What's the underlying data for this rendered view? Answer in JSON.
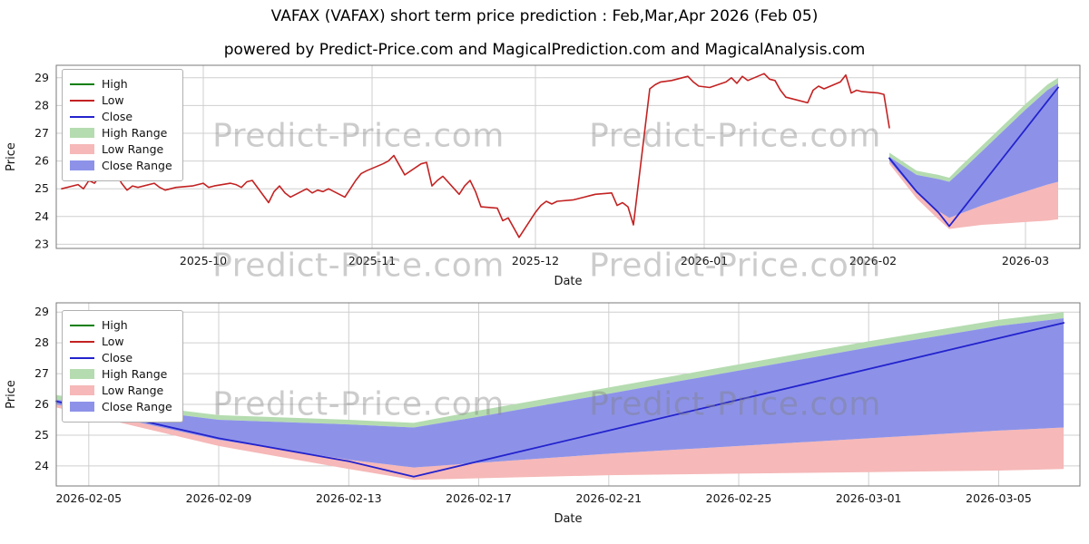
{
  "title": "VAFAX (VAFAX) short term price prediction : Feb,Mar,Apr 2026 (Feb 05)",
  "subtitle": "powered by Predict-Price.com and MagicalPrediction.com and MagicalAnalysis.com",
  "watermark": {
    "text": "Predict-Price.com"
  },
  "colors": {
    "high": "#0a7f0a",
    "low": "#c32222",
    "close": "#2323cd",
    "high_range": "#b5dcb0",
    "low_range": "#f6b8b8",
    "close_range": "#8d92e8"
  },
  "legend": {
    "items": [
      {
        "label": "High",
        "swatch": "line",
        "color_key": "high"
      },
      {
        "label": "Low",
        "swatch": "line",
        "color_key": "low"
      },
      {
        "label": "Close",
        "swatch": "line",
        "color_key": "close"
      },
      {
        "label": "High Range",
        "swatch": "patch",
        "color_key": "high_range"
      },
      {
        "label": "Low Range",
        "swatch": "patch",
        "color_key": "low_range"
      },
      {
        "label": "Close Range",
        "swatch": "patch",
        "color_key": "close_range"
      }
    ]
  },
  "chart_data": {
    "type": "line",
    "history": {
      "name": "Low",
      "dates": [
        "2025-09-05",
        "2025-09-08",
        "2025-09-09",
        "2025-09-10",
        "2025-09-11",
        "2025-09-12",
        "2025-09-15",
        "2025-09-16",
        "2025-09-17",
        "2025-09-18",
        "2025-09-19",
        "2025-09-22",
        "2025-09-23",
        "2025-09-24",
        "2025-09-25",
        "2025-09-26",
        "2025-09-29",
        "2025-09-30",
        "2025-10-01",
        "2025-10-02",
        "2025-10-03",
        "2025-10-06",
        "2025-10-07",
        "2025-10-08",
        "2025-10-09",
        "2025-10-10",
        "2025-10-13",
        "2025-10-14",
        "2025-10-15",
        "2025-10-16",
        "2025-10-17",
        "2025-10-20",
        "2025-10-21",
        "2025-10-22",
        "2025-10-23",
        "2025-10-24",
        "2025-10-27",
        "2025-10-28",
        "2025-10-29",
        "2025-10-30",
        "2025-10-31",
        "2025-11-03",
        "2025-11-04",
        "2025-11-05",
        "2025-11-06",
        "2025-11-07",
        "2025-11-10",
        "2025-11-11",
        "2025-11-12",
        "2025-11-13",
        "2025-11-14",
        "2025-11-17",
        "2025-11-18",
        "2025-11-19",
        "2025-11-20",
        "2025-11-21",
        "2025-11-24",
        "2025-11-25",
        "2025-11-26",
        "2025-11-28",
        "2025-12-01",
        "2025-12-02",
        "2025-12-03",
        "2025-12-04",
        "2025-12-05",
        "2025-12-08",
        "2025-12-09",
        "2025-12-10",
        "2025-12-11",
        "2025-12-12",
        "2025-12-15",
        "2025-12-16",
        "2025-12-17",
        "2025-12-18",
        "2025-12-19",
        "2025-12-22",
        "2025-12-23",
        "2025-12-24",
        "2025-12-26",
        "2025-12-29",
        "2025-12-30",
        "2025-12-31",
        "2026-01-02",
        "2026-01-05",
        "2026-01-06",
        "2026-01-07",
        "2026-01-08",
        "2026-01-09",
        "2026-01-12",
        "2026-01-13",
        "2026-01-14",
        "2026-01-15",
        "2026-01-16",
        "2026-01-20",
        "2026-01-21",
        "2026-01-22",
        "2026-01-23",
        "2026-01-26",
        "2026-01-27",
        "2026-01-28",
        "2026-01-29",
        "2026-01-30",
        "2026-02-02",
        "2026-02-03",
        "2026-02-04"
      ],
      "values": [
        25.0,
        25.15,
        25.0,
        25.3,
        25.2,
        25.45,
        25.55,
        25.2,
        24.95,
        25.1,
        25.05,
        25.2,
        25.05,
        24.95,
        25.0,
        25.05,
        25.1,
        25.15,
        25.2,
        25.05,
        25.1,
        25.2,
        25.15,
        25.05,
        25.25,
        25.3,
        24.5,
        24.9,
        25.1,
        24.85,
        24.7,
        25.0,
        24.85,
        24.95,
        24.9,
        25.0,
        24.7,
        25.0,
        25.3,
        25.55,
        25.65,
        25.9,
        26.0,
        26.2,
        25.85,
        25.5,
        25.9,
        25.95,
        25.1,
        25.3,
        25.45,
        24.8,
        25.1,
        25.3,
        24.9,
        24.35,
        24.3,
        23.85,
        23.95,
        23.25,
        24.15,
        24.4,
        24.55,
        24.45,
        24.55,
        24.6,
        24.65,
        24.7,
        24.75,
        24.8,
        24.85,
        24.4,
        24.5,
        24.35,
        23.7,
        28.6,
        28.75,
        28.85,
        28.9,
        29.05,
        28.85,
        28.7,
        28.65,
        28.85,
        29.0,
        28.8,
        29.05,
        28.9,
        29.15,
        28.95,
        28.9,
        28.55,
        28.3,
        28.1,
        28.55,
        28.7,
        28.6,
        28.85,
        29.1,
        28.45,
        28.55,
        28.5,
        28.45,
        28.4,
        27.2
      ]
    },
    "prediction": {
      "dates": [
        "2026-02-04",
        "2026-02-09",
        "2026-02-13",
        "2026-02-15",
        "2026-02-17",
        "2026-02-21",
        "2026-02-25",
        "2026-03-01",
        "2026-03-05",
        "2026-03-07"
      ],
      "close": [
        26.1,
        24.9,
        24.15,
        23.65,
        24.15,
        25.15,
        26.15,
        27.15,
        28.15,
        28.65
      ],
      "high_upper": [
        26.3,
        25.65,
        25.5,
        25.4,
        25.8,
        26.55,
        27.3,
        28.05,
        28.75,
        29.0
      ],
      "close_upper": [
        26.15,
        25.5,
        25.35,
        25.25,
        25.6,
        26.35,
        27.1,
        27.85,
        28.55,
        28.8
      ],
      "close_lower": [
        26.0,
        24.85,
        24.2,
        23.95,
        24.1,
        24.4,
        24.65,
        24.9,
        25.15,
        25.25
      ],
      "low_lower": [
        25.9,
        24.65,
        23.9,
        23.55,
        23.6,
        23.7,
        23.75,
        23.8,
        23.85,
        23.9
      ]
    },
    "bands": [
      {
        "name": "High Range",
        "upper": "high_upper",
        "lower": "close_upper",
        "color_key": "high_range"
      },
      {
        "name": "Low Range",
        "upper": "close_lower",
        "lower": "low_lower",
        "color_key": "low_range"
      },
      {
        "name": "Close Range",
        "upper": "close_upper",
        "lower": "close_lower",
        "color_key": "close_range"
      }
    ],
    "axes": [
      {
        "id": "top",
        "xlabel": "Date",
        "ylabel": "Price",
        "xlim": [
          "2025-09-04",
          "2026-03-11"
        ],
        "ylim": [
          22.85,
          29.45
        ],
        "yticks": [
          23,
          24,
          25,
          26,
          27,
          28,
          29
        ],
        "xticks": [
          {
            "pos": "2025-10-01",
            "label": "2025-10"
          },
          {
            "pos": "2025-11-01",
            "label": "2025-11"
          },
          {
            "pos": "2025-12-01",
            "label": "2025-12"
          },
          {
            "pos": "2026-01-01",
            "label": "2026-01"
          },
          {
            "pos": "2026-02-01",
            "label": "2026-02"
          },
          {
            "pos": "2026-03-01",
            "label": "2026-03"
          }
        ],
        "show_history": true
      },
      {
        "id": "bottom",
        "xlabel": "Date",
        "ylabel": "Price",
        "xlim": [
          "2026-02-04",
          "2026-03-07T12:00:00"
        ],
        "ylim": [
          23.35,
          29.3
        ],
        "yticks": [
          24,
          25,
          26,
          27,
          28,
          29
        ],
        "xticks": [
          {
            "pos": "2026-02-05",
            "label": "2026-02-05"
          },
          {
            "pos": "2026-02-09",
            "label": "2026-02-09"
          },
          {
            "pos": "2026-02-13",
            "label": "2026-02-13"
          },
          {
            "pos": "2026-02-17",
            "label": "2026-02-17"
          },
          {
            "pos": "2026-02-21",
            "label": "2026-02-21"
          },
          {
            "pos": "2026-02-25",
            "label": "2026-02-25"
          },
          {
            "pos": "2026-03-01",
            "label": "2026-03-01"
          },
          {
            "pos": "2026-03-05",
            "label": "2026-03-05"
          }
        ],
        "show_history": false
      }
    ]
  }
}
